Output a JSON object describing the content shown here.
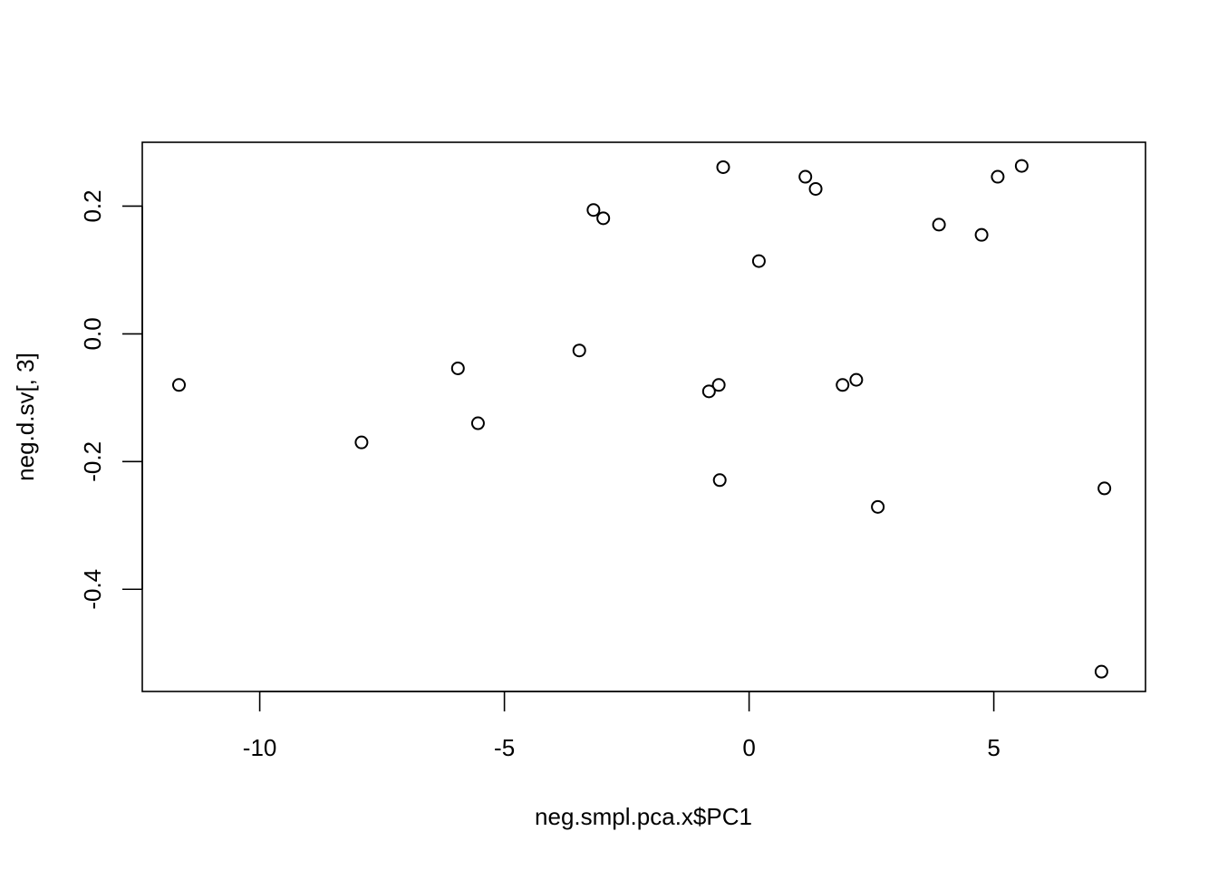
{
  "chart_data": {
    "type": "scatter",
    "title": "",
    "xlabel": "neg.smpl.pca.x$PC1",
    "ylabel": "neg.d.sv[, 3]",
    "xlim": [
      -12.4,
      8.1
    ],
    "ylim": [
      -0.56,
      0.3
    ],
    "grid": false,
    "legend": "none",
    "xticks": [
      {
        "value": -10,
        "label": "-10"
      },
      {
        "value": -5,
        "label": "-5"
      },
      {
        "value": 0,
        "label": "0"
      },
      {
        "value": 5,
        "label": "5"
      }
    ],
    "yticks": [
      {
        "value": 0.2,
        "label": "0.2"
      },
      {
        "value": 0.0,
        "label": "0.0"
      },
      {
        "value": -0.2,
        "label": "-0.2"
      },
      {
        "value": -0.4,
        "label": "-0.4"
      }
    ],
    "points": [
      {
        "x": -11.65,
        "y": -0.08
      },
      {
        "x": -7.92,
        "y": -0.17
      },
      {
        "x": -5.95,
        "y": -0.054
      },
      {
        "x": -5.54,
        "y": -0.14
      },
      {
        "x": -3.47,
        "y": -0.026
      },
      {
        "x": -3.18,
        "y": 0.194
      },
      {
        "x": -2.98,
        "y": 0.181
      },
      {
        "x": -0.82,
        "y": -0.09
      },
      {
        "x": -0.62,
        "y": -0.08
      },
      {
        "x": -0.6,
        "y": -0.229
      },
      {
        "x": -0.53,
        "y": 0.261
      },
      {
        "x": 0.2,
        "y": 0.114
      },
      {
        "x": 1.15,
        "y": 0.246
      },
      {
        "x": 1.36,
        "y": 0.227
      },
      {
        "x": 1.91,
        "y": -0.08
      },
      {
        "x": 2.19,
        "y": -0.072
      },
      {
        "x": 2.63,
        "y": -0.271
      },
      {
        "x": 3.88,
        "y": 0.171
      },
      {
        "x": 4.75,
        "y": 0.155
      },
      {
        "x": 5.08,
        "y": 0.246
      },
      {
        "x": 5.57,
        "y": 0.263
      },
      {
        "x": 7.2,
        "y": -0.529
      },
      {
        "x": 7.26,
        "y": -0.242
      }
    ]
  }
}
